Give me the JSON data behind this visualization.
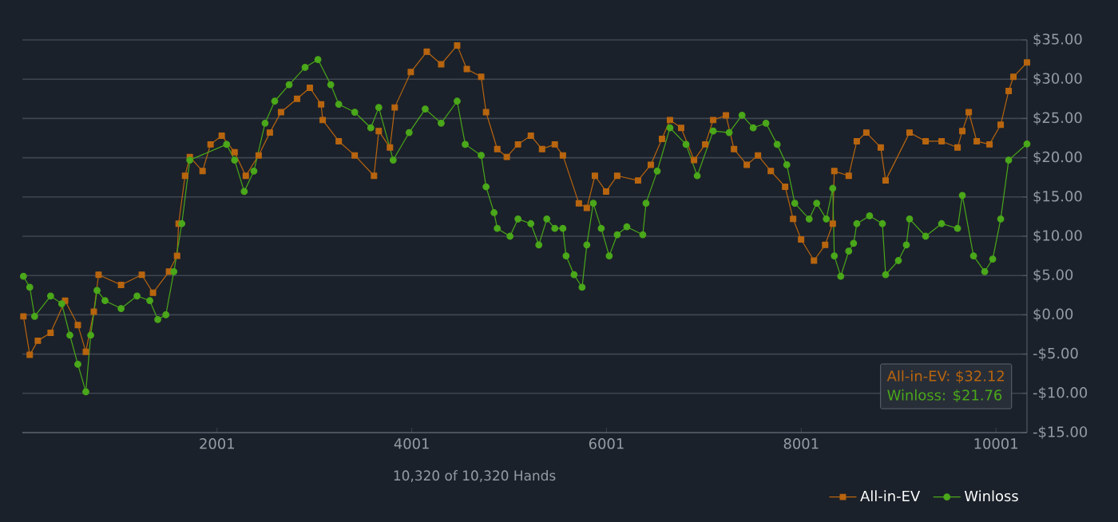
{
  "chart_data": {
    "type": "line",
    "xlabel": "10,320 of 10,320 Hands",
    "xlim": [
      1,
      10320
    ],
    "xticks": [
      2001,
      4001,
      6001,
      8001,
      10001
    ],
    "ylim": [
      -15,
      35
    ],
    "yticks": [
      {
        "value": -15,
        "label": "-$15.00"
      },
      {
        "value": -10,
        "label": "-$10.00"
      },
      {
        "value": -5,
        "label": "-$5.00"
      },
      {
        "value": 0,
        "label": "$0.00"
      },
      {
        "value": 5,
        "label": "$5.00"
      },
      {
        "value": 10,
        "label": "$10.00"
      },
      {
        "value": 15,
        "label": "$15.00"
      },
      {
        "value": 20,
        "label": "$20.00"
      },
      {
        "value": 25,
        "label": "$25.00"
      },
      {
        "value": 30,
        "label": "$30.00"
      },
      {
        "value": 35,
        "label": "$35.00"
      }
    ],
    "grid": "y",
    "legend": "bottom right",
    "line_style": "solid",
    "annotations": [
      "All-in-EV: $32.12",
      "Winloss: $21.76"
    ],
    "series": [
      {
        "name": "All-in-EV",
        "color": "#b8650f",
        "marker": "square",
        "x": [
          12,
          77,
          160,
          291,
          440,
          571,
          653,
          735,
          784,
          1015,
          1228,
          1343,
          1507,
          1590,
          1606,
          1672,
          1721,
          1852,
          1934,
          2049,
          2181,
          2296,
          2428,
          2543,
          2658,
          2823,
          2954,
          3070,
          3086,
          3251,
          3415,
          3613,
          3662,
          3777,
          3826,
          3991,
          4155,
          4303,
          4467,
          4566,
          4714,
          4764,
          4879,
          4977,
          5092,
          5224,
          5339,
          5470,
          5553,
          5717,
          5799,
          5882,
          5997,
          6111,
          6325,
          6456,
          6571,
          6653,
          6768,
          6900,
          7015,
          7097,
          7228,
          7311,
          7442,
          7557,
          7689,
          7836,
          7918,
          8000,
          8132,
          8247,
          8325,
          8341,
          8489,
          8572,
          8670,
          8818,
          8868,
          9114,
          9279,
          9443,
          9607,
          9656,
          9722,
          9804,
          9935,
          10050,
          10132,
          10181,
          10320
        ],
        "values": [
          -0.2,
          -5.1,
          -3.3,
          -2.3,
          1.8,
          -1.3,
          -4.7,
          0.4,
          5.1,
          3.8,
          5.1,
          2.8,
          5.5,
          7.5,
          11.6,
          17.7,
          20.1,
          18.3,
          21.7,
          22.8,
          20.7,
          17.7,
          20.3,
          23.2,
          25.8,
          27.5,
          28.9,
          26.8,
          24.8,
          22.1,
          20.3,
          17.7,
          23.4,
          21.3,
          26.4,
          30.9,
          33.5,
          31.9,
          34.3,
          31.3,
          30.3,
          25.8,
          21.1,
          20.1,
          21.7,
          22.8,
          21.1,
          21.7,
          20.3,
          14.2,
          13.6,
          17.7,
          15.7,
          17.7,
          17.1,
          19.1,
          22.4,
          24.8,
          23.8,
          19.7,
          21.7,
          24.8,
          25.4,
          21.1,
          19.1,
          20.3,
          18.3,
          16.3,
          12.2,
          9.6,
          6.9,
          8.9,
          11.6,
          18.3,
          17.7,
          22.1,
          23.2,
          21.3,
          17.1,
          23.2,
          22.1,
          22.1,
          21.3,
          23.4,
          25.8,
          22.1,
          21.7,
          24.2,
          28.5,
          30.3,
          32.12
        ]
      },
      {
        "name": "Winloss",
        "color": "#4aa81a",
        "marker": "circle",
        "x": [
          12,
          77,
          127,
          291,
          406,
          489,
          571,
          653,
          703,
          768,
          850,
          1015,
          1179,
          1310,
          1392,
          1475,
          1557,
          1639,
          1721,
          2099,
          2181,
          2280,
          2379,
          2494,
          2593,
          2741,
          2905,
          3037,
          3169,
          3251,
          3415,
          3580,
          3662,
          3810,
          3974,
          4139,
          4303,
          4467,
          4550,
          4714,
          4764,
          4846,
          4879,
          5010,
          5092,
          5224,
          5306,
          5388,
          5470,
          5553,
          5586,
          5668,
          5750,
          5799,
          5865,
          5947,
          6029,
          6111,
          6210,
          6374,
          6407,
          6522,
          6653,
          6818,
          6933,
          7097,
          7261,
          7393,
          7508,
          7639,
          7754,
          7853,
          7935,
          8083,
          8160,
          8259,
          8325,
          8341,
          8407,
          8489,
          8539,
          8572,
          8703,
          8835,
          8868,
          8999,
          9081,
          9114,
          9279,
          9443,
          9607,
          9656,
          9771,
          9886,
          9968,
          10050,
          10132,
          10320
        ],
        "values": [
          4.9,
          3.5,
          -0.2,
          2.4,
          1.4,
          -2.6,
          -6.3,
          -9.8,
          -2.6,
          3.1,
          1.8,
          0.8,
          2.4,
          1.8,
          -0.6,
          0,
          5.5,
          11.6,
          19.7,
          21.7,
          19.7,
          15.7,
          18.3,
          24.4,
          27.2,
          29.3,
          31.5,
          32.5,
          29.3,
          26.8,
          25.8,
          23.8,
          26.4,
          19.7,
          23.2,
          26.2,
          24.4,
          27.2,
          21.7,
          20.3,
          16.3,
          13,
          11,
          10,
          12.2,
          11.6,
          8.9,
          12.2,
          11,
          11,
          7.5,
          5.1,
          3.5,
          8.9,
          14.2,
          11,
          7.5,
          10.2,
          11.2,
          10.2,
          14.2,
          18.3,
          23.8,
          21.7,
          17.7,
          23.4,
          23.2,
          25.4,
          23.8,
          24.4,
          21.7,
          19.1,
          14.2,
          12.2,
          14.2,
          12.2,
          16.1,
          7.5,
          4.9,
          8.1,
          9.1,
          11.6,
          12.6,
          11.6,
          5.1,
          6.9,
          8.9,
          12.2,
          10,
          11.6,
          11,
          15.2,
          7.5,
          5.5,
          7.1,
          12.2,
          19.7,
          21.76
        ]
      }
    ]
  }
}
